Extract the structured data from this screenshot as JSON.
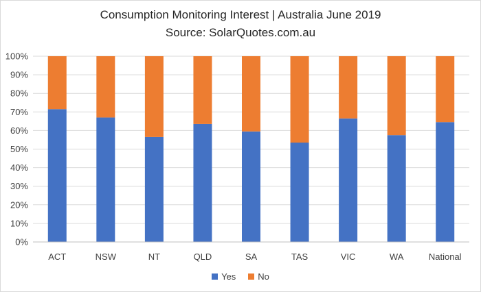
{
  "chart_data": {
    "type": "bar",
    "stacked": true,
    "title": "Consumption Monitoring Interest | Australia June 2019",
    "subtitle": "Source: SolarQuotes.com.au",
    "categories": [
      "ACT",
      "NSW",
      "NT",
      "QLD",
      "SA",
      "TAS",
      "VIC",
      "WA",
      "National"
    ],
    "series": [
      {
        "name": "Yes",
        "color": "#4472c4",
        "values": [
          71.5,
          67,
          56.5,
          63.5,
          59.5,
          53.5,
          66.5,
          57.5,
          64.5
        ]
      },
      {
        "name": "No",
        "color": "#ed7d31",
        "values": [
          28.5,
          33,
          43.5,
          36.5,
          40.5,
          46.5,
          33.5,
          42.5,
          35.5
        ]
      }
    ],
    "ylim": [
      0,
      100
    ],
    "y_ticks": [
      "0%",
      "10%",
      "20%",
      "30%",
      "40%",
      "50%",
      "60%",
      "70%",
      "80%",
      "90%",
      "100%"
    ],
    "grid": true,
    "legend_position": "bottom"
  }
}
